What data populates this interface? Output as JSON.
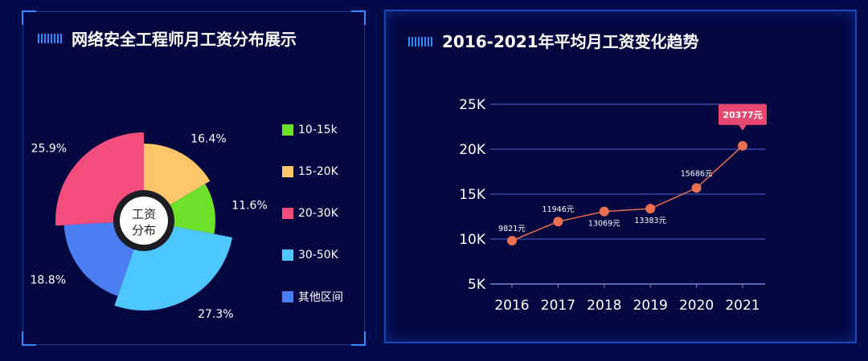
{
  "left_panel": {
    "title": "网络安全工程师月工资分布展示",
    "center_label": [
      "工资",
      "分布"
    ]
  },
  "right_panel": {
    "title": "2016-2021年平均月工资变化趋势"
  },
  "colors": {
    "accent": "#2a8cff",
    "line": "#e8704e",
    "highlight": "#e8476f"
  },
  "chart_data": [
    {
      "type": "pie",
      "style": "rose",
      "categories": [
        "10-15k",
        "15-20K",
        "20-30K",
        "30-50K",
        "其他区间"
      ],
      "values": [
        11.6,
        16.4,
        25.9,
        27.3,
        18.8
      ],
      "value_labels": [
        "11.6%",
        "16.4%",
        "25.9%",
        "27.3%",
        "18.8%"
      ],
      "colors": [
        "#6de029",
        "#fec66a",
        "#f24d7c",
        "#4ec6ff",
        "#4b7ef0"
      ],
      "legend_position": "right"
    },
    {
      "type": "line",
      "x": [
        "2016",
        "2017",
        "2018",
        "2019",
        "2020",
        "2021"
      ],
      "values": [
        9821,
        11946,
        13069,
        13383,
        15686,
        20377
      ],
      "value_labels": [
        "9821元",
        "11946元",
        "13069元",
        "13383元",
        "15686元",
        "20377元"
      ],
      "y_ticks": [
        "5K",
        "10K",
        "15K",
        "20K",
        "25K"
      ],
      "ylim": [
        5000,
        25000
      ],
      "grid": true,
      "highlight_index": 5
    }
  ]
}
